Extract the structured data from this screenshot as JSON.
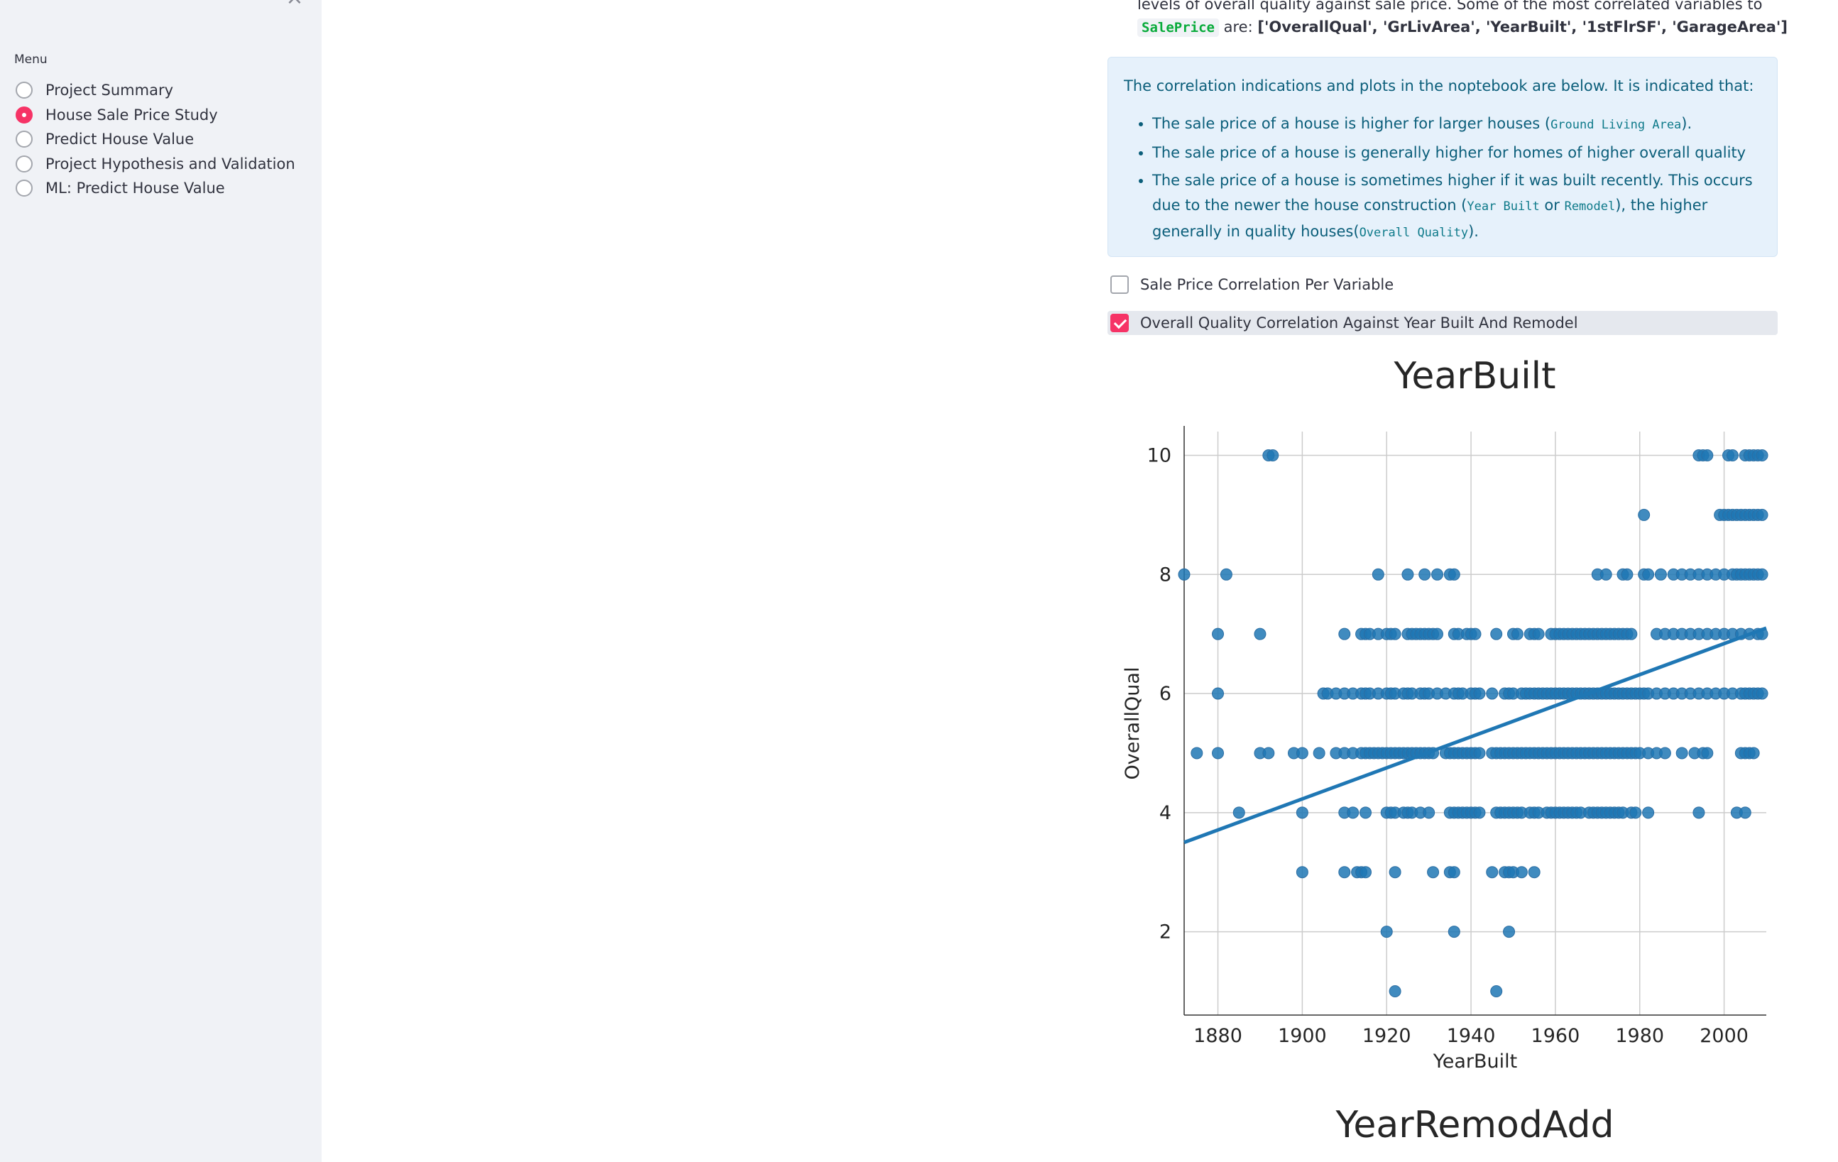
{
  "sidebar": {
    "close_icon": "×",
    "menu_title": "Menu",
    "items": [
      {
        "label": "Project Summary",
        "selected": false
      },
      {
        "label": "House Sale Price Study",
        "selected": true
      },
      {
        "label": "Predict House Value",
        "selected": false
      },
      {
        "label": "Project Hypothesis and Validation",
        "selected": false
      },
      {
        "label": "ML: Predict House Value",
        "selected": false
      }
    ]
  },
  "intro": {
    "line1": "levels of overall quality against sale price. Some of the most correlated variables to",
    "code": "SalePrice",
    "are": " are: ",
    "vars": "['OverallQual', 'GrLivArea', 'YearBuilt', '1stFlrSF', 'GarageArea']"
  },
  "info": {
    "lead": "The correlation indications and plots in the noptebook are below. It is indicated that:",
    "b1_pre": "The sale price of a house is higher for larger houses (",
    "b1_code": "Ground Living Area",
    "b1_post": ").",
    "b2": "The sale price of a house is generally higher for homes of higher overall quality",
    "b3_pre": "The sale price of a house is sometimes higher if it was built recently. This occurs due to the newer the house construction (",
    "b3_code1": "Year Built",
    "b3_mid": " or ",
    "b3_code2": "Remodel",
    "b3_mid2": "), the higher generally in quality houses(",
    "b3_code3": "Overall Quality",
    "b3_post": ")."
  },
  "checkboxes": [
    {
      "label": "Sale Price Correlation Per Variable",
      "checked": false
    },
    {
      "label": "Overall Quality Correlation Against Year Built And Remodel",
      "checked": true
    }
  ],
  "colors": {
    "accent": "#f63366",
    "point": "#1f77b4"
  },
  "chart_data": [
    {
      "type": "scatter",
      "title": "YearBuilt",
      "xlabel": "YearBuilt",
      "ylabel": "OverallQual",
      "xlim": [
        1872,
        2010
      ],
      "ylim": [
        0.6,
        10.4
      ],
      "xticks": [
        1880,
        1900,
        1920,
        1940,
        1960,
        1980,
        2000
      ],
      "yticks": [
        2,
        4,
        6,
        8,
        10
      ],
      "grid": true,
      "regression_line": {
        "x": [
          1872,
          2010
        ],
        "y": [
          3.5,
          7.1
        ]
      },
      "points_by_quality": {
        "10": [
          1892,
          1893,
          1994,
          1995,
          1996,
          2001,
          2002,
          2005,
          2006,
          2007,
          2008,
          2009
        ],
        "9": [
          1981,
          1999,
          2000,
          2001,
          2002,
          2003,
          2004,
          2005,
          2006,
          2007,
          2008,
          2009
        ],
        "8": [
          1872,
          1882,
          1918,
          1925,
          1929,
          1932,
          1935,
          1936,
          1970,
          1972,
          1976,
          1977,
          1981,
          1982,
          1985,
          1988,
          1990,
          1992,
          1994,
          1996,
          1998,
          2000,
          2002,
          2003,
          2004,
          2005,
          2006,
          2007,
          2008,
          2009
        ],
        "7": [
          1880,
          1890,
          1910,
          1914,
          1915,
          1916,
          1918,
          1920,
          1921,
          1922,
          1925,
          1926,
          1927,
          1928,
          1929,
          1930,
          1931,
          1932,
          1936,
          1937,
          1939,
          1940,
          1941,
          1946,
          1950,
          1951,
          1954,
          1955,
          1956,
          1959,
          1960,
          1961,
          1962,
          1963,
          1964,
          1965,
          1966,
          1967,
          1968,
          1969,
          1970,
          1971,
          1972,
          1973,
          1974,
          1975,
          1976,
          1977,
          1978,
          1984,
          1986,
          1988,
          1990,
          1992,
          1994,
          1996,
          1998,
          2000,
          2002,
          2004,
          2006,
          2008,
          2009
        ],
        "6": [
          1880,
          1905,
          1906,
          1908,
          1910,
          1912,
          1914,
          1915,
          1916,
          1918,
          1920,
          1921,
          1922,
          1924,
          1925,
          1926,
          1928,
          1929,
          1930,
          1932,
          1934,
          1936,
          1937,
          1938,
          1940,
          1941,
          1942,
          1945,
          1948,
          1949,
          1950,
          1952,
          1953,
          1954,
          1955,
          1956,
          1957,
          1958,
          1959,
          1960,
          1961,
          1962,
          1963,
          1964,
          1965,
          1966,
          1967,
          1968,
          1969,
          1970,
          1971,
          1972,
          1973,
          1974,
          1975,
          1976,
          1977,
          1978,
          1979,
          1980,
          1981,
          1982,
          1984,
          1986,
          1988,
          1990,
          1992,
          1994,
          1996,
          1998,
          2000,
          2002,
          2004,
          2005,
          2006,
          2007,
          2008,
          2009
        ],
        "5": [
          1875,
          1880,
          1890,
          1892,
          1898,
          1900,
          1904,
          1908,
          1910,
          1912,
          1914,
          1915,
          1916,
          1917,
          1918,
          1919,
          1920,
          1921,
          1922,
          1923,
          1924,
          1925,
          1926,
          1927,
          1928,
          1929,
          1930,
          1931,
          1934,
          1935,
          1936,
          1937,
          1938,
          1939,
          1940,
          1941,
          1942,
          1945,
          1946,
          1947,
          1948,
          1949,
          1950,
          1951,
          1952,
          1953,
          1954,
          1955,
          1956,
          1957,
          1958,
          1959,
          1960,
          1961,
          1962,
          1963,
          1964,
          1965,
          1966,
          1967,
          1968,
          1969,
          1970,
          1971,
          1972,
          1973,
          1974,
          1975,
          1976,
          1977,
          1978,
          1979,
          1980,
          1982,
          1984,
          1986,
          1990,
          1993,
          1995,
          1996,
          2004,
          2005,
          2006,
          2007
        ],
        "4": [
          1885,
          1900,
          1910,
          1912,
          1915,
          1920,
          1921,
          1922,
          1924,
          1925,
          1926,
          1928,
          1930,
          1935,
          1936,
          1937,
          1938,
          1939,
          1940,
          1941,
          1942,
          1946,
          1947,
          1948,
          1949,
          1950,
          1951,
          1952,
          1954,
          1955,
          1956,
          1958,
          1959,
          1960,
          1961,
          1962,
          1963,
          1964,
          1965,
          1966,
          1968,
          1969,
          1970,
          1971,
          1972,
          1973,
          1974,
          1975,
          1976,
          1978,
          1979,
          1982,
          1994,
          2003,
          2005
        ],
        "3": [
          1900,
          1910,
          1913,
          1914,
          1915,
          1922,
          1931,
          1935,
          1936,
          1945,
          1948,
          1949,
          1950,
          1952,
          1955
        ],
        "2": [
          1920,
          1936,
          1949
        ],
        "1": [
          1922,
          1946
        ]
      }
    },
    {
      "type": "scatter",
      "title": "YearRemodAdd"
    }
  ]
}
